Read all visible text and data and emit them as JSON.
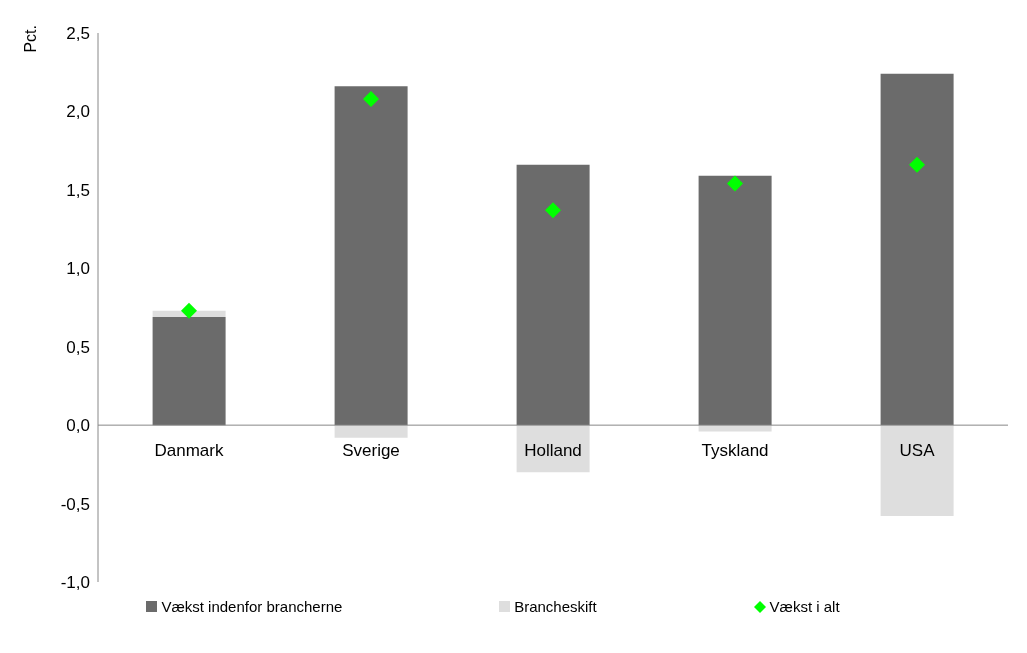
{
  "chart_data": {
    "type": "bar",
    "stacked": true,
    "ylabel": "Pct.",
    "categories": [
      "Danmark",
      "Sverige",
      "Holland",
      "Tyskland",
      "USA"
    ],
    "series": [
      {
        "name": "Vækst indenfor brancherne",
        "color": "#6b6b6b",
        "values": [
          0.69,
          2.16,
          1.66,
          1.59,
          2.24
        ]
      },
      {
        "name": "Brancheskift",
        "color": "#dedede",
        "values": [
          0.04,
          -0.08,
          -0.3,
          -0.04,
          -0.58
        ]
      },
      {
        "name": "Vækst i alt",
        "type": "scatter",
        "color": "#00ff00",
        "marker": "diamond",
        "x": [
          "Danmark",
          "Sverige",
          "Holland",
          "Tyskland",
          "USA"
        ],
        "values": [
          0.73,
          2.08,
          1.37,
          1.54,
          1.66
        ]
      }
    ],
    "ylim": [
      -1,
      2.5
    ],
    "yticks": [
      {
        "value": -1,
        "label": "-1,0"
      },
      {
        "value": -0.5,
        "label": "-0,5"
      },
      {
        "value": 0,
        "label": "0,0"
      },
      {
        "value": 0.5,
        "label": "0,5"
      },
      {
        "value": 1,
        "label": "1,0"
      },
      {
        "value": 1.5,
        "label": "1,5"
      },
      {
        "value": 2,
        "label": "2,0"
      },
      {
        "value": 2.5,
        "label": "2,5"
      }
    ],
    "grid": false,
    "legend": "bottom"
  }
}
